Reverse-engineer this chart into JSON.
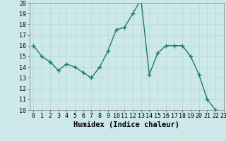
{
  "x": [
    0,
    1,
    2,
    3,
    4,
    5,
    6,
    7,
    8,
    9,
    10,
    11,
    12,
    13,
    14,
    15,
    16,
    17,
    18,
    19,
    20,
    21,
    22,
    23
  ],
  "y": [
    16,
    15,
    14.5,
    13.7,
    14.3,
    14,
    13.5,
    13,
    14,
    15.5,
    17.5,
    17.7,
    19,
    20.3,
    13.3,
    15.3,
    16,
    16,
    16,
    15,
    13.3,
    11,
    10,
    9.8
  ],
  "line_color": "#1a7a6e",
  "marker": "+",
  "marker_size": 4,
  "marker_linewidth": 1.0,
  "linewidth": 1.0,
  "bg_color": "#cce8e8",
  "grid_color": "#b8d8d8",
  "xlabel": "Humidex (Indice chaleur)",
  "ylim": [
    10,
    20
  ],
  "xlim": [
    -0.5,
    23
  ],
  "yticks": [
    10,
    11,
    12,
    13,
    14,
    15,
    16,
    17,
    18,
    19,
    20
  ],
  "xticks": [
    0,
    1,
    2,
    3,
    4,
    5,
    6,
    7,
    8,
    9,
    10,
    11,
    12,
    13,
    14,
    15,
    16,
    17,
    18,
    19,
    20,
    21,
    22,
    23
  ],
  "tick_fontsize": 6,
  "label_fontsize": 7.5
}
